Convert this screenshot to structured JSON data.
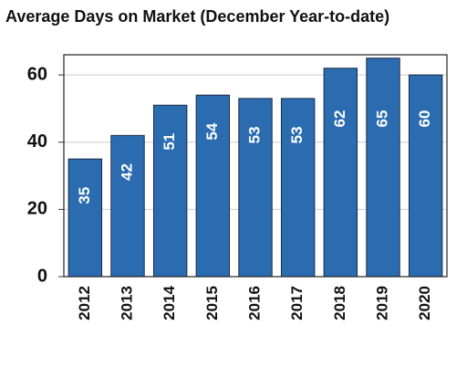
{
  "chart_data": {
    "type": "bar",
    "title": "Average Days on Market (December Year-to-date)",
    "categories": [
      "2012",
      "2013",
      "2014",
      "2015",
      "2016",
      "2017",
      "2018",
      "2019",
      "2020"
    ],
    "values": [
      35,
      42,
      51,
      54,
      53,
      53,
      62,
      65,
      60
    ],
    "color": "#2b6cb0",
    "ylim": [
      0,
      66
    ],
    "yticks": [
      0,
      20,
      40,
      60
    ],
    "grid": true
  }
}
